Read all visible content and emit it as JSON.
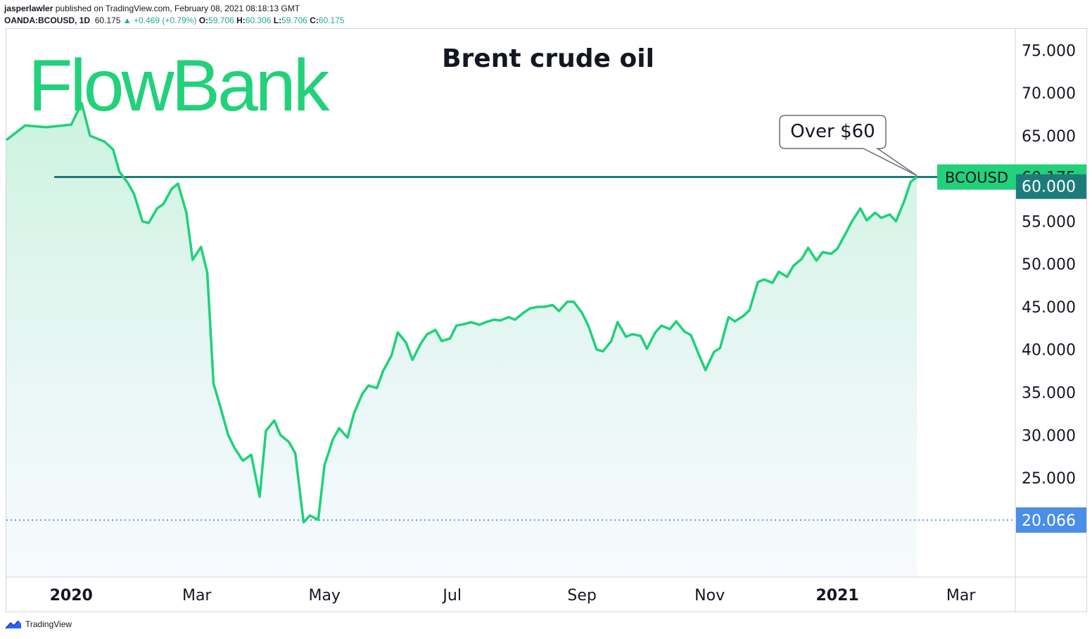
{
  "header": {
    "author": "jasperlawler",
    "published": "published on TradingView.com, February 08, 2021 08:18:13 GMT",
    "symbol_line": "OANDA:BCOUSD, 1D",
    "last": "60.175",
    "change": "▲ +0.469 (+0.79%)",
    "o_label": "O:",
    "o_val": "59.706",
    "h_label": "H:",
    "h_val": "60.306",
    "l_label": "L:",
    "l_val": "59.706",
    "c_label": "C:",
    "c_val": "60.175"
  },
  "logo": {
    "text": "FlowBank"
  },
  "footer": {
    "brand": "TradingView"
  },
  "colors": {
    "line": "#1fd17a",
    "area_top": "#c8f2dc",
    "hline": "#1e7b7b",
    "symbol_badge": "#22d17a",
    "level_badge": "#1e7b7b",
    "low_badge": "#4a8ee6",
    "logo": "#22d17a"
  },
  "chart_data": {
    "type": "line",
    "title": "Brent crude oil",
    "symbol": "BCOUSD",
    "last_value": "60.175",
    "horizontal_level": {
      "value": 60.0,
      "label": "60.000"
    },
    "low_marker": {
      "value": 20.066,
      "label": "20.066"
    },
    "annotation": {
      "text": "Over $60",
      "x": "2021-02-08",
      "y": 60.175
    },
    "x_ticks": [
      {
        "date": "2020-01-01",
        "label": "2020",
        "bold": true
      },
      {
        "date": "2020-03-01",
        "label": "Mar",
        "bold": false
      },
      {
        "date": "2020-05-01",
        "label": "May",
        "bold": false
      },
      {
        "date": "2020-07-01",
        "label": "Jul",
        "bold": false
      },
      {
        "date": "2020-09-01",
        "label": "Sep",
        "bold": false
      },
      {
        "date": "2020-11-01",
        "label": "Nov",
        "bold": false
      },
      {
        "date": "2021-01-01",
        "label": "2021",
        "bold": true
      },
      {
        "date": "2021-03-01",
        "label": "Mar",
        "bold": false
      }
    ],
    "y_ticks": [
      "75.000",
      "70.000",
      "65.000",
      "55.000",
      "50.000",
      "45.000",
      "40.000",
      "35.000",
      "30.000",
      "25.000"
    ],
    "y_tick_values": [
      75,
      70,
      65,
      55,
      50,
      45,
      40,
      35,
      30,
      25
    ],
    "ylim": [
      13.4,
      77.5
    ],
    "xlim": [
      "2019-12-01",
      "2021-03-27"
    ],
    "grid": false,
    "x": [
      "2019-12-01",
      "2019-12-10",
      "2019-12-20",
      "2020-01-01",
      "2020-01-06",
      "2020-01-10",
      "2020-01-14",
      "2020-01-17",
      "2020-01-21",
      "2020-01-24",
      "2020-01-28",
      "2020-01-31",
      "2020-02-04",
      "2020-02-07",
      "2020-02-11",
      "2020-02-14",
      "2020-02-18",
      "2020-02-21",
      "2020-02-25",
      "2020-02-28",
      "2020-03-03",
      "2020-03-06",
      "2020-03-09",
      "2020-03-12",
      "2020-03-16",
      "2020-03-19",
      "2020-03-23",
      "2020-03-27",
      "2020-03-31",
      "2020-04-03",
      "2020-04-07",
      "2020-04-10",
      "2020-04-14",
      "2020-04-17",
      "2020-04-21",
      "2020-04-24",
      "2020-04-28",
      "2020-05-01",
      "2020-05-05",
      "2020-05-08",
      "2020-05-12",
      "2020-05-15",
      "2020-05-19",
      "2020-05-22",
      "2020-05-26",
      "2020-05-29",
      "2020-06-02",
      "2020-06-05",
      "2020-06-09",
      "2020-06-12",
      "2020-06-16",
      "2020-06-19",
      "2020-06-23",
      "2020-06-26",
      "2020-06-30",
      "2020-07-03",
      "2020-07-07",
      "2020-07-10",
      "2020-07-14",
      "2020-07-17",
      "2020-07-21",
      "2020-07-24",
      "2020-07-28",
      "2020-07-31",
      "2020-08-04",
      "2020-08-07",
      "2020-08-11",
      "2020-08-14",
      "2020-08-18",
      "2020-08-21",
      "2020-08-25",
      "2020-08-28",
      "2020-09-01",
      "2020-09-04",
      "2020-09-08",
      "2020-09-11",
      "2020-09-15",
      "2020-09-18",
      "2020-09-22",
      "2020-09-25",
      "2020-09-29",
      "2020-10-02",
      "2020-10-06",
      "2020-10-09",
      "2020-10-13",
      "2020-10-16",
      "2020-10-20",
      "2020-10-23",
      "2020-10-27",
      "2020-10-30",
      "2020-11-03",
      "2020-11-06",
      "2020-11-10",
      "2020-11-13",
      "2020-11-17",
      "2020-11-20",
      "2020-11-24",
      "2020-11-27",
      "2020-12-01",
      "2020-12-04",
      "2020-12-08",
      "2020-12-11",
      "2020-12-15",
      "2020-12-18",
      "2020-12-22",
      "2020-12-25",
      "2020-12-29",
      "2021-01-01",
      "2021-01-05",
      "2021-01-08",
      "2021-01-12",
      "2021-01-15",
      "2021-01-19",
      "2021-01-22",
      "2021-01-26",
      "2021-01-29",
      "2021-02-02",
      "2021-02-05",
      "2021-02-08"
    ],
    "series": [
      {
        "values": [
          64.5,
          66.2,
          66.0,
          66.3,
          68.8,
          65.0,
          64.6,
          64.3,
          63.4,
          60.8,
          59.5,
          58.2,
          55.0,
          54.8,
          56.5,
          57.0,
          58.8,
          59.4,
          56.0,
          50.5,
          52.0,
          49.0,
          36.0,
          33.5,
          30.0,
          28.5,
          27.0,
          27.7,
          22.8,
          30.5,
          31.7,
          30.0,
          29.2,
          27.9,
          19.8,
          20.6,
          20.1,
          26.5,
          29.5,
          30.8,
          29.7,
          32.5,
          34.8,
          35.8,
          35.5,
          37.5,
          39.3,
          42.0,
          40.8,
          38.8,
          40.7,
          41.8,
          42.3,
          41.0,
          41.3,
          42.8,
          43.0,
          43.2,
          42.9,
          43.2,
          43.5,
          43.4,
          43.8,
          43.5,
          44.3,
          44.8,
          45.0,
          45.0,
          45.2,
          44.5,
          45.6,
          45.6,
          44.3,
          42.8,
          40.0,
          39.8,
          41.0,
          43.2,
          41.5,
          41.8,
          41.6,
          40.1,
          42.0,
          42.8,
          42.4,
          43.3,
          42.1,
          41.7,
          39.3,
          37.6,
          39.7,
          40.2,
          43.8,
          43.3,
          43.9,
          44.6,
          47.9,
          48.2,
          47.8,
          49.1,
          48.5,
          49.8,
          50.6,
          51.9,
          50.4,
          51.4,
          51.2,
          51.8,
          53.6,
          55.0,
          56.5,
          55.1,
          56.0,
          55.4,
          55.8,
          55.0,
          57.4,
          59.6,
          60.175
        ]
      }
    ]
  }
}
